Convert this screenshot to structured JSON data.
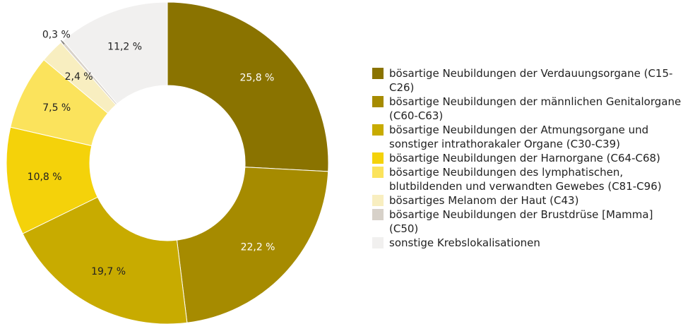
{
  "chart_data": {
    "type": "donut",
    "categories": [
      "bösartige Neubildungen der Verdauungsorgane (C15-C26)",
      "bösartige Neubildungen der männlichen Genitalorgane (C60-C63)",
      "bösartige Neubildungen der Atmungsorgane und sonstiger intrathorakaler Organe (C30-C39)",
      "bösartige Neubildungen der Harnorgane (C64-C68)",
      "bösartige Neubildungen des lymphatischen, blutbildenden und verwandten Gewebes (C81-C96)",
      "bösartiges Melanom der Haut (C43)",
      "bösartige Neubildungen der Brustdrüse [Mamma] (C50)",
      "sonstige Krebslokalisationen"
    ],
    "values": [
      25.8,
      22.2,
      19.7,
      10.8,
      7.5,
      2.4,
      0.3,
      11.2
    ],
    "value_labels": [
      "25,8 %",
      "22,2 %",
      "19,7 %",
      "10,8 %",
      "7,5 %",
      "2,4 %",
      "0,3 %",
      "11,2 %"
    ],
    "colors": [
      "#8a7300",
      "#a68b00",
      "#c8ab00",
      "#f4d20a",
      "#fbe35c",
      "#f8eec0",
      "#d7d1c9",
      "#f1f0ef"
    ],
    "legend": "right"
  }
}
